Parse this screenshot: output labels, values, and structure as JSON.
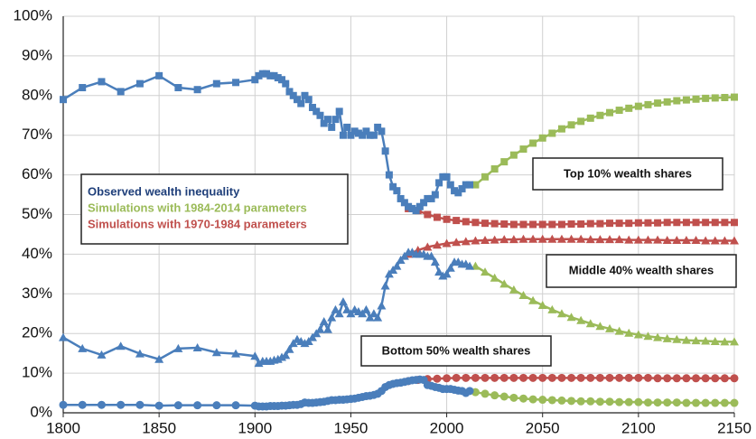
{
  "chart_data": {
    "type": "line",
    "xlim": [
      1800,
      2150
    ],
    "xticks": [
      1800,
      1850,
      1900,
      1950,
      2000,
      2050,
      2100,
      2150
    ],
    "ylim": [
      0,
      100
    ],
    "yticks": [
      {
        "value": 0,
        "label": "0%"
      },
      {
        "value": 10,
        "label": "10%"
      },
      {
        "value": 20,
        "label": "20%"
      },
      {
        "value": 30,
        "label": "30%"
      },
      {
        "value": 40,
        "label": "40%"
      },
      {
        "value": 50,
        "label": "50%"
      },
      {
        "value": 60,
        "label": "60%"
      },
      {
        "value": 70,
        "label": "70%"
      },
      {
        "value": 80,
        "label": "80%"
      },
      {
        "value": 90,
        "label": "90%"
      },
      {
        "value": 100,
        "label": "100%"
      }
    ],
    "grid": true,
    "legend": [
      {
        "name": "Observed wealth inequality",
        "color": "#1f3f7a"
      },
      {
        "name": "Simulations with 1984-2014 parameters",
        "color": "#9bbb59"
      },
      {
        "name": "Simulations with 1970-1984 parameters",
        "color": "#c0504d"
      }
    ],
    "annotations": [
      "Top 10% wealth shares",
      "Middle 40% wealth shares",
      "Bottom 50% wealth shares"
    ],
    "series": [
      {
        "color": "#c0504d",
        "marker": "square",
        "x": [
          1980,
          1985,
          1990,
          1995,
          2000,
          2005,
          2010,
          2015,
          2020,
          2025,
          2030,
          2035,
          2040,
          2045,
          2050,
          2055,
          2060,
          2065,
          2070,
          2075,
          2080,
          2085,
          2090,
          2095,
          2100,
          2105,
          2110,
          2115,
          2120,
          2125,
          2130,
          2135,
          2140,
          2145,
          2150
        ],
        "values": [
          51.5,
          51,
          50,
          49.3,
          48.8,
          48.5,
          48.2,
          48,
          47.8,
          47.7,
          47.6,
          47.5,
          47.5,
          47.5,
          47.5,
          47.5,
          47.5,
          47.6,
          47.6,
          47.7,
          47.7,
          47.8,
          47.8,
          47.8,
          47.9,
          47.9,
          47.9,
          48,
          48,
          48,
          48,
          48,
          48,
          48,
          48
        ]
      },
      {
        "color": "#c0504d",
        "marker": "triangle",
        "x": [
          1980,
          1985,
          1990,
          1995,
          2000,
          2005,
          2010,
          2015,
          2020,
          2025,
          2030,
          2035,
          2040,
          2045,
          2050,
          2055,
          2060,
          2065,
          2070,
          2075,
          2080,
          2085,
          2090,
          2095,
          2100,
          2105,
          2110,
          2115,
          2120,
          2125,
          2130,
          2135,
          2140,
          2145,
          2150
        ],
        "values": [
          40,
          41,
          41.8,
          42.3,
          42.7,
          43,
          43.2,
          43.4,
          43.5,
          43.6,
          43.7,
          43.7,
          43.8,
          43.8,
          43.8,
          43.8,
          43.8,
          43.8,
          43.8,
          43.7,
          43.7,
          43.7,
          43.7,
          43.6,
          43.6,
          43.6,
          43.6,
          43.5,
          43.5,
          43.5,
          43.5,
          43.4,
          43.4,
          43.4,
          43.4
        ]
      },
      {
        "color": "#c0504d",
        "marker": "circle",
        "x": [
          1980,
          1985,
          1990,
          1995,
          2000,
          2005,
          2010,
          2015,
          2020,
          2025,
          2030,
          2035,
          2040,
          2045,
          2050,
          2055,
          2060,
          2065,
          2070,
          2075,
          2080,
          2085,
          2090,
          2095,
          2100,
          2105,
          2110,
          2115,
          2120,
          2125,
          2130,
          2135,
          2140,
          2145,
          2150
        ],
        "values": [
          8,
          8.3,
          8.5,
          8.6,
          8.7,
          8.8,
          8.8,
          8.8,
          8.8,
          8.8,
          8.8,
          8.8,
          8.8,
          8.8,
          8.8,
          8.8,
          8.8,
          8.8,
          8.8,
          8.8,
          8.8,
          8.8,
          8.8,
          8.8,
          8.8,
          8.8,
          8.7,
          8.7,
          8.7,
          8.7,
          8.7,
          8.7,
          8.7,
          8.7,
          8.7
        ]
      },
      {
        "color": "#9bbb59",
        "marker": "square",
        "x": [
          2015,
          2020,
          2025,
          2030,
          2035,
          2040,
          2045,
          2050,
          2055,
          2060,
          2065,
          2070,
          2075,
          2080,
          2085,
          2090,
          2095,
          2100,
          2105,
          2110,
          2115,
          2120,
          2125,
          2130,
          2135,
          2140,
          2145,
          2150
        ],
        "values": [
          57.5,
          59.5,
          61.5,
          63.3,
          65,
          66.5,
          68,
          69.3,
          70.5,
          71.6,
          72.6,
          73.5,
          74.3,
          75,
          75.7,
          76.3,
          76.8,
          77.3,
          77.7,
          78.1,
          78.4,
          78.7,
          78.9,
          79.1,
          79.3,
          79.4,
          79.5,
          79.6
        ]
      },
      {
        "color": "#9bbb59",
        "marker": "triangle",
        "x": [
          2015,
          2020,
          2025,
          2030,
          2035,
          2040,
          2045,
          2050,
          2055,
          2060,
          2065,
          2070,
          2075,
          2080,
          2085,
          2090,
          2095,
          2100,
          2105,
          2110,
          2115,
          2120,
          2125,
          2130,
          2135,
          2140,
          2145,
          2150
        ],
        "values": [
          37,
          35.5,
          34,
          32.5,
          31,
          29.6,
          28.3,
          27.1,
          26,
          25,
          24.1,
          23.3,
          22.5,
          21.8,
          21.2,
          20.6,
          20.1,
          19.7,
          19.3,
          19,
          18.7,
          18.5,
          18.3,
          18.2,
          18.1,
          18,
          17.9,
          17.9
        ]
      },
      {
        "color": "#9bbb59",
        "marker": "circle",
        "x": [
          2015,
          2020,
          2025,
          2030,
          2035,
          2040,
          2045,
          2050,
          2055,
          2060,
          2065,
          2070,
          2075,
          2080,
          2085,
          2090,
          2095,
          2100,
          2105,
          2110,
          2115,
          2120,
          2125,
          2130,
          2135,
          2140,
          2145,
          2150
        ],
        "values": [
          5.2,
          4.8,
          4.4,
          4.1,
          3.8,
          3.6,
          3.4,
          3.3,
          3.2,
          3.1,
          3,
          2.9,
          2.9,
          2.8,
          2.8,
          2.7,
          2.7,
          2.7,
          2.6,
          2.6,
          2.6,
          2.6,
          2.5,
          2.5,
          2.5,
          2.5,
          2.5,
          2.5
        ]
      },
      {
        "color": "#4a7ebb",
        "marker": "square",
        "x": [
          1800,
          1810,
          1820,
          1830,
          1840,
          1850,
          1860,
          1870,
          1880,
          1890,
          1900,
          1902,
          1904,
          1906,
          1908,
          1910,
          1912,
          1914,
          1916,
          1918,
          1920,
          1922,
          1924,
          1926,
          1928,
          1930,
          1932,
          1934,
          1936,
          1938,
          1940,
          1942,
          1944,
          1946,
          1948,
          1950,
          1952,
          1954,
          1956,
          1958,
          1960,
          1962,
          1964,
          1966,
          1968,
          1970,
          1972,
          1974,
          1976,
          1978,
          1980,
          1982,
          1984,
          1986,
          1988,
          1990,
          1992,
          1994,
          1996,
          1998,
          2000,
          2002,
          2004,
          2006,
          2008,
          2010,
          2012
        ],
        "values": [
          79,
          82,
          83.5,
          81,
          83,
          85,
          82,
          81.5,
          83,
          83.3,
          84,
          85,
          85.5,
          85.5,
          85,
          85,
          84.5,
          84,
          83,
          81,
          80,
          79,
          78,
          80,
          79,
          77,
          76,
          75,
          73,
          74,
          72,
          74,
          76,
          70,
          72,
          70,
          71,
          70.5,
          70,
          71,
          70,
          70,
          72,
          71,
          66,
          60,
          57,
          56,
          54,
          53,
          52,
          51.5,
          51,
          52,
          53,
          54,
          54,
          55,
          58,
          59.5,
          59.5,
          57.5,
          56,
          55.5,
          56.5,
          57.5,
          57.5
        ]
      },
      {
        "color": "#4a7ebb",
        "marker": "triangle",
        "x": [
          1800,
          1810,
          1820,
          1830,
          1840,
          1850,
          1860,
          1870,
          1880,
          1890,
          1900,
          1902,
          1904,
          1906,
          1908,
          1910,
          1912,
          1914,
          1916,
          1918,
          1920,
          1922,
          1924,
          1926,
          1928,
          1930,
          1932,
          1934,
          1936,
          1938,
          1940,
          1942,
          1944,
          1946,
          1948,
          1950,
          1952,
          1954,
          1956,
          1958,
          1960,
          1962,
          1964,
          1966,
          1968,
          1970,
          1972,
          1974,
          1976,
          1978,
          1980,
          1982,
          1984,
          1986,
          1988,
          1990,
          1992,
          1994,
          1996,
          1998,
          2000,
          2002,
          2004,
          2006,
          2008,
          2010,
          2012
        ],
        "values": [
          19,
          16.2,
          14.6,
          16.8,
          14.9,
          13.5,
          16.2,
          16.4,
          15.2,
          14.9,
          14.3,
          12.5,
          13,
          13,
          13,
          13.3,
          13.5,
          14,
          14.5,
          16,
          17.5,
          18.5,
          18,
          17.5,
          18,
          19,
          20,
          21,
          23,
          21,
          24,
          26,
          25,
          28,
          26,
          25,
          26,
          25.5,
          25,
          26,
          24,
          25,
          24,
          27,
          32,
          35,
          36,
          37,
          38.5,
          39.5,
          40.5,
          40.5,
          40,
          40,
          40,
          39.5,
          39.5,
          38,
          35.5,
          34.5,
          35,
          36.5,
          38,
          38,
          37.5,
          37.5,
          37
        ]
      },
      {
        "color": "#4a7ebb",
        "marker": "circle",
        "x": [
          1800,
          1810,
          1820,
          1830,
          1840,
          1850,
          1860,
          1870,
          1880,
          1890,
          1900,
          1902,
          1904,
          1906,
          1908,
          1910,
          1912,
          1914,
          1916,
          1918,
          1920,
          1922,
          1924,
          1926,
          1928,
          1930,
          1932,
          1934,
          1936,
          1938,
          1940,
          1942,
          1944,
          1946,
          1948,
          1950,
          1952,
          1954,
          1956,
          1958,
          1960,
          1962,
          1964,
          1966,
          1968,
          1970,
          1972,
          1974,
          1976,
          1978,
          1980,
          1982,
          1984,
          1986,
          1988,
          1990,
          1992,
          1994,
          1996,
          1998,
          2000,
          2002,
          2004,
          2006,
          2008,
          2010,
          2012
        ],
        "values": [
          2,
          2,
          2,
          2,
          2,
          1.8,
          1.9,
          1.9,
          1.9,
          1.9,
          1.8,
          1.6,
          1.6,
          1.6,
          1.7,
          1.7,
          1.7,
          1.8,
          1.8,
          1.9,
          2,
          2,
          2.2,
          2.6,
          2.5,
          2.5,
          2.6,
          2.7,
          2.8,
          3,
          3.2,
          3.2,
          3.3,
          3.3,
          3.4,
          3.5,
          3.6,
          3.8,
          4,
          4.2,
          4.3,
          4.5,
          4.8,
          5.5,
          6.5,
          7,
          7.3,
          7.5,
          7.6,
          7.8,
          8,
          8.2,
          8.3,
          8.4,
          8.3,
          7,
          6.8,
          6.5,
          6.3,
          6,
          6,
          6,
          5.8,
          5.6,
          5.5,
          5,
          5.5
        ]
      }
    ]
  }
}
